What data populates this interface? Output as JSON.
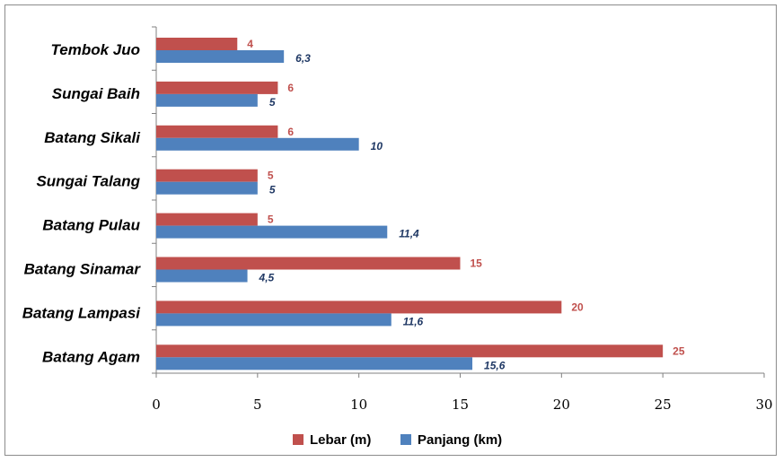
{
  "chart_data": {
    "type": "bar",
    "orientation": "horizontal",
    "categories": [
      "Tembok Juo",
      "Sungai Baih",
      "Batang Sikali",
      "Sungai Talang",
      "Batang Pulau",
      "Batang Sinamar",
      "Batang Lampasi",
      "Batang Agam"
    ],
    "series": [
      {
        "name": "Lebar (m)",
        "color": "#c0504d",
        "values": [
          4,
          6,
          6,
          5,
          5,
          15,
          20,
          25
        ],
        "labels": [
          "4",
          "6",
          "6",
          "5",
          "5",
          "15",
          "20",
          "25"
        ]
      },
      {
        "name": "Panjang (km)",
        "color": "#4f81bd",
        "values": [
          6.3,
          5,
          10,
          5,
          11.4,
          4.5,
          11.6,
          15.6
        ],
        "labels": [
          "6,3",
          "5",
          "10",
          "5",
          "11,4",
          "4,5",
          "11,6",
          "15,6"
        ]
      }
    ],
    "xlim": [
      0,
      30
    ],
    "xticks": [
      "0",
      "5",
      "10",
      "15",
      "20",
      "25",
      "30"
    ],
    "xticks_values": [
      0,
      5,
      10,
      15,
      20,
      25,
      30
    ],
    "title": "",
    "xlabel": "",
    "ylabel": "",
    "grid": false,
    "legend_position": "bottom",
    "lebar_label_color": "#c0504d",
    "panjang_label_color": "#1f3864"
  }
}
